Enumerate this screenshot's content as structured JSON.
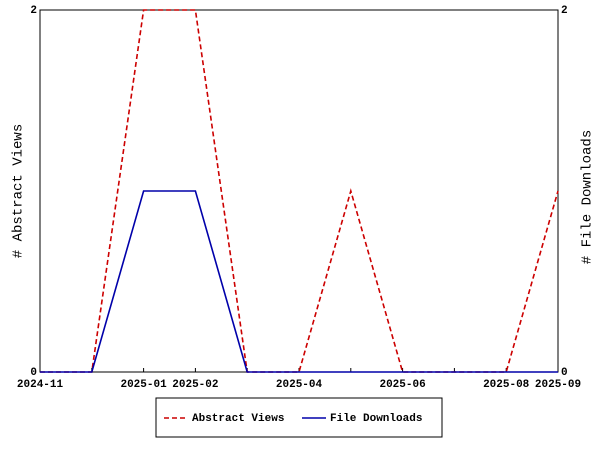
{
  "chart_data": {
    "type": "line",
    "categories": [
      "2024-11",
      null,
      "2025-01",
      "2025-02",
      null,
      "2025-04",
      null,
      "2025-06",
      null,
      "2025-08",
      "2025-09"
    ],
    "y_label": "# Abstract Views",
    "y2_label": "# File Downloads",
    "ylim": [
      0,
      2
    ],
    "yticks": [
      0,
      2
    ],
    "y2lim": [
      0,
      2
    ],
    "y2ticks": [
      0,
      2
    ],
    "legend": "bottom",
    "series": [
      {
        "name": "Abstract Views",
        "color": "#cc0000",
        "dash": true,
        "values": [
          0,
          0,
          2,
          2,
          0,
          0,
          1,
          0,
          0,
          0,
          1
        ]
      },
      {
        "name": "File Downloads",
        "color": "#0000aa",
        "dash": false,
        "axis": "y2",
        "values": [
          0,
          0,
          1,
          1,
          0,
          0,
          0,
          0,
          0,
          0,
          0
        ]
      }
    ]
  }
}
